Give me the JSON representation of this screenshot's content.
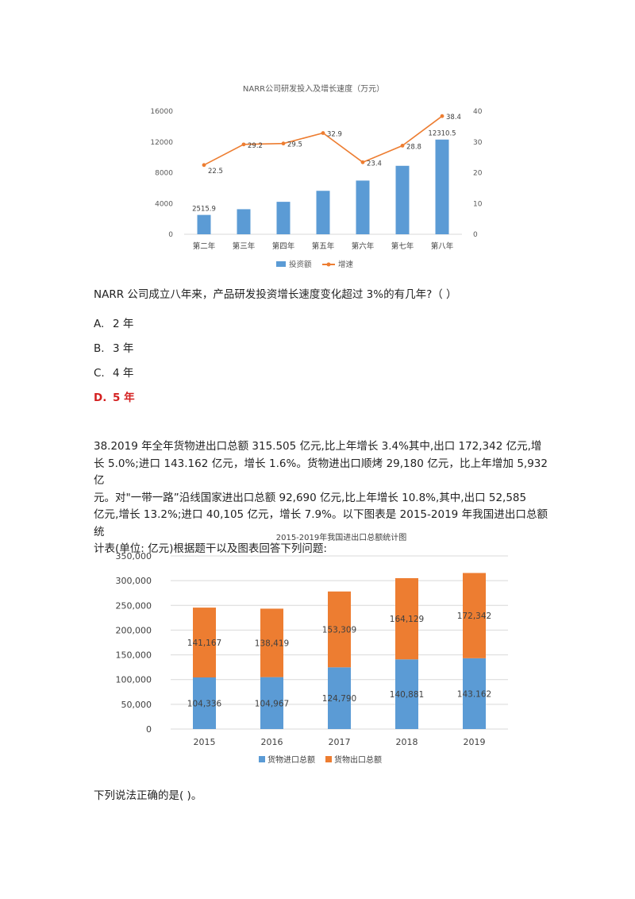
{
  "chart_data": [
    {
      "type": "bar+line",
      "title": "NARR公司研发投入及增长速度（万元）",
      "categories": [
        "第二年",
        "第三年",
        "第四年",
        "第五年",
        "第六年",
        "第七年",
        "第八年"
      ],
      "series": [
        {
          "name": "投资额",
          "kind": "bar",
          "axis": "left",
          "color": "#5b9bd5",
          "values": [
            2515.9,
            3260,
            4220,
            5650,
            6980,
            8900,
            12310.5
          ],
          "labels": [
            "2515.9",
            "",
            "",
            "",
            "",
            "",
            "12310.5"
          ]
        },
        {
          "name": "增速",
          "kind": "line",
          "axis": "right",
          "color": "#ed7d31",
          "values": [
            22.5,
            29.2,
            29.5,
            32.9,
            23.4,
            28.8,
            38.4
          ],
          "labels": [
            "22.5",
            "29.2",
            "29.5",
            "32.9",
            "23.4",
            "28.8",
            "38.4"
          ]
        }
      ],
      "y_left": {
        "min": 0,
        "max": 16000,
        "ticks": [
          0,
          4000,
          8000,
          12000,
          16000
        ]
      },
      "y_right": {
        "min": 0,
        "max": 40,
        "ticks": [
          0,
          10,
          20,
          30,
          40
        ]
      },
      "legend": "bottom"
    },
    {
      "type": "stacked-bar",
      "title": "2015-2019年我国进出口总额统计图",
      "categories": [
        "2015",
        "2016",
        "2017",
        "2018",
        "2019"
      ],
      "series": [
        {
          "name": "货物进口总额",
          "color": "#5b9bd5",
          "values": [
            104336,
            104967,
            124790,
            140881,
            143162
          ],
          "labels": [
            "104,336",
            "104,967",
            "124,790",
            "140,881",
            "143.162"
          ]
        },
        {
          "name": "货物出口总额",
          "color": "#ed7d31",
          "values": [
            141167,
            138419,
            153309,
            164129,
            172342
          ],
          "labels": [
            "141,167",
            "138,419",
            "153,309",
            "164,129",
            "172,342"
          ]
        }
      ],
      "y": {
        "min": 0,
        "max": 350000,
        "tick_labels": [
          "0",
          "50,000",
          "100,000",
          "150,000",
          "200,000",
          "250,000",
          "300,000",
          "350,000"
        ]
      },
      "legend": "bottom",
      "grid": true
    }
  ],
  "q1": {
    "text": "NARR 公司成立八年来，产品研发投资增长速度变化超过 3%的有几年?（    ）",
    "options": [
      {
        "letter": "A.",
        "text": "2 年"
      },
      {
        "letter": "B.",
        "text": "3 年"
      },
      {
        "letter": "C.",
        "text": "4 年"
      },
      {
        "letter": "D.",
        "text": "5 年"
      }
    ]
  },
  "q2": {
    "lines": [
      "38.2019 年全年货物进出口总额 315.505 亿元,比上年增长 3.4%其中,出口 172,342 亿元,增",
      "长 5.0%;进口 143.162 亿元，增长 1.6%。货物进出口顺烤 29,180 亿元，比上年增加 5,932 亿",
      "元。对\"一带一路”沿线国家进出口总额 92,690 亿元,比上年增长 10.8%,其中,出口 52,585",
      "亿元,增长 13.2%;进口 40,105 亿元，增长 7.9%。以下图表是 2015-2019 年我国进出口总额统",
      "计表(单位: 亿元)根据题干以及图表回答下列问题:"
    ],
    "question": "下列说法正确的是(    )。"
  }
}
